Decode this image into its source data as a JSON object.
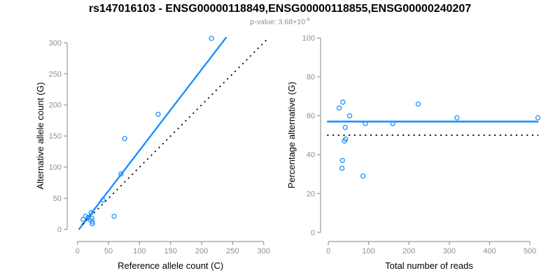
{
  "header": {
    "title": "rs147016103 - ENSG00000118849,ENSG00000118855,ENSG00000240207",
    "pvalue_label": "p-value: 3.68×10",
    "pvalue_exponent": "-8"
  },
  "colors": {
    "accent_blue": "#1E90FF",
    "identity_black": "#000000",
    "axis_gray": "#9a9a9a",
    "tick_label_gray": "#8f8f8f",
    "subtitle_gray": "#8c8c8c",
    "label_black": "#000000"
  },
  "chart_data": [
    {
      "type": "scatter",
      "panel": "allele-counts",
      "xlabel": "Reference allele count (C)",
      "ylabel": "Alternative allele count (G)",
      "xlim": [
        0,
        300
      ],
      "ylim": [
        0,
        300
      ],
      "xticks": [
        0,
        50,
        100,
        150,
        200,
        250,
        300
      ],
      "yticks": [
        0,
        50,
        100,
        150,
        200,
        250,
        300
      ],
      "grid": false,
      "legend": "none",
      "points": [
        [
          9,
          16
        ],
        [
          13,
          21
        ],
        [
          17,
          19
        ],
        [
          21,
          15
        ],
        [
          22,
          27
        ],
        [
          23,
          18
        ],
        [
          24,
          12
        ],
        [
          24,
          9
        ],
        [
          41,
          47
        ],
        [
          59,
          21
        ],
        [
          70,
          89
        ],
        [
          76,
          146
        ],
        [
          130,
          185
        ],
        [
          216,
          307
        ]
      ],
      "lines": [
        {
          "name": "regression-line",
          "slope": 1.3,
          "intercept": -3,
          "x_range": [
            2,
            240
          ],
          "style": "solid",
          "color": "#1E90FF",
          "width": 2.4
        },
        {
          "name": "identity-line",
          "slope": 1,
          "intercept": 0,
          "x_range": [
            8,
            307
          ],
          "style": "dotted",
          "color": "#000000",
          "width": 1.7
        }
      ]
    },
    {
      "type": "scatter",
      "panel": "percentage-alternative",
      "xlabel": "Total number of reads",
      "ylabel": "Percentage alternative (G)",
      "xlim": [
        0,
        500
      ],
      "ylim": [
        0,
        100
      ],
      "xticks": [
        0,
        100,
        200,
        300,
        400,
        500
      ],
      "yticks": [
        0,
        20,
        40,
        60,
        80,
        100
      ],
      "grid": false,
      "legend": "none",
      "points": [
        [
          27,
          64
        ],
        [
          36,
          67
        ],
        [
          34,
          33
        ],
        [
          35,
          37
        ],
        [
          40,
          47
        ],
        [
          43,
          48
        ],
        [
          42,
          54
        ],
        [
          53,
          60
        ],
        [
          86,
          29
        ],
        [
          92,
          56
        ],
        [
          160,
          56
        ],
        [
          223,
          66
        ],
        [
          319,
          59
        ],
        [
          520,
          59
        ]
      ],
      "lines": [
        {
          "name": "mean-line",
          "y": 57,
          "x_range": [
            -3,
            521
          ],
          "style": "solid",
          "color": "#1E90FF",
          "width": 2.6
        },
        {
          "name": "null-line",
          "y": 50,
          "x_range": [
            -3,
            521
          ],
          "style": "dotted",
          "color": "#000000",
          "width": 1.7
        }
      ]
    }
  ]
}
